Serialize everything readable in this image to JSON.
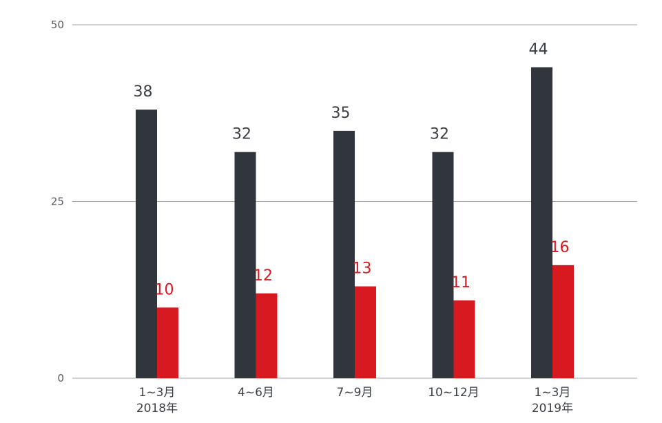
{
  "chart_data": {
    "type": "bar",
    "categories": [
      [
        "1~3月",
        "2018年"
      ],
      [
        "4~6月"
      ],
      [
        "7~9月"
      ],
      [
        "10~12月"
      ],
      [
        "1~3月",
        "2019年"
      ]
    ],
    "series": [
      {
        "values": [
          38,
          32,
          35,
          32,
          44
        ],
        "color": "#31363d"
      },
      {
        "values": [
          10,
          12,
          13,
          11,
          16
        ],
        "color": "#d71920",
        "label_color": "#d71920"
      }
    ],
    "yticks": [
      0,
      25,
      50
    ],
    "ylim": [
      0,
      50
    ],
    "grid": true,
    "grid_color": "#a6a6a6",
    "data_label_color": "#3a3f45",
    "title": "",
    "xlabel": "",
    "ylabel": ""
  }
}
